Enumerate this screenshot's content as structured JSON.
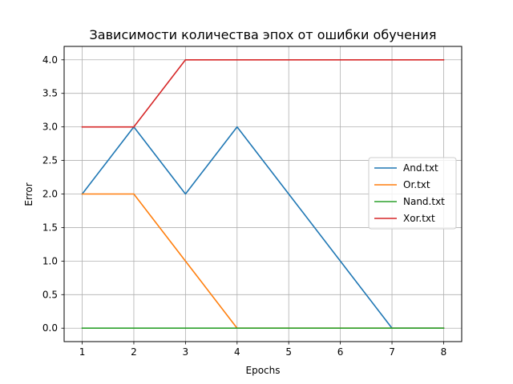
{
  "chart_data": {
    "type": "line",
    "title": "Зависимости количества эпох от ошибки обучения",
    "xlabel": "Epochs",
    "ylabel": "Error",
    "x": [
      1,
      2,
      3,
      4,
      5,
      6,
      7,
      8
    ],
    "xlim": [
      0.65,
      8.35
    ],
    "ylim": [
      -0.2,
      4.2
    ],
    "xticks": [
      "1",
      "2",
      "3",
      "4",
      "5",
      "6",
      "7",
      "8"
    ],
    "yticks": [
      "0.0",
      "0.5",
      "1.0",
      "1.5",
      "2.0",
      "2.5",
      "3.0",
      "3.5",
      "4.0"
    ],
    "grid": true,
    "legend_position": "center-right",
    "series": [
      {
        "name": "And.txt",
        "color": "#1f77b4",
        "values": [
          2,
          3,
          2,
          3,
          2,
          1,
          0,
          0
        ]
      },
      {
        "name": "Or.txt",
        "color": "#ff7f0e",
        "values": [
          2,
          2,
          1,
          0,
          0,
          0,
          0,
          0
        ]
      },
      {
        "name": "Nand.txt",
        "color": "#2ca02c",
        "values": [
          0,
          0,
          0,
          0,
          0,
          0,
          0,
          0
        ]
      },
      {
        "name": "Xor.txt",
        "color": "#d62728",
        "values": [
          3,
          3,
          4,
          4,
          4,
          4,
          4,
          4
        ]
      }
    ]
  }
}
